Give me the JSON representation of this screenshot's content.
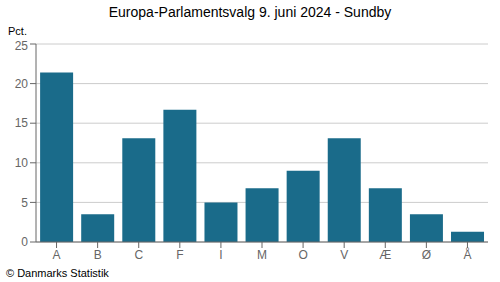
{
  "chart_data": {
    "type": "bar",
    "title": "Europa-Parlamentsvalg 9. juni 2024 - Sundby",
    "ylabel": "Pct.",
    "annotations": [
      "© Danmarks Statistik"
    ],
    "categories": [
      "A",
      "B",
      "C",
      "F",
      "I",
      "M",
      "O",
      "V",
      "Æ",
      "Ø",
      "Å"
    ],
    "values": [
      21.4,
      3.5,
      13.1,
      16.7,
      5.0,
      6.8,
      9.0,
      13.1,
      6.8,
      3.5,
      1.3
    ],
    "color": "#1a6b8a",
    "ylim": [
      0,
      25
    ],
    "yticks": [
      0,
      5,
      10,
      15,
      20,
      25
    ],
    "grid": true
  }
}
